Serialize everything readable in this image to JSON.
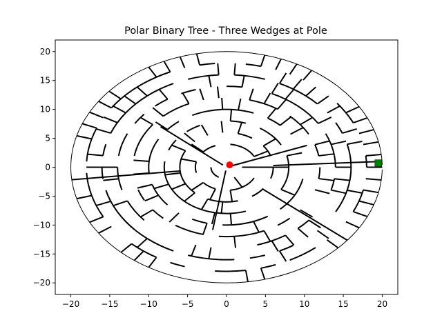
{
  "figure": {
    "title": "Polar Binary Tree - Three Wedges at Pole",
    "background": "#ffffff"
  },
  "chart_data": {
    "type": "maze",
    "title": "Polar Binary Tree - Three Wedges at Pole",
    "xlim": [
      -22,
      22
    ],
    "ylim": [
      -22,
      22
    ],
    "xticks": [
      -20,
      -15,
      -10,
      -5,
      0,
      5,
      10,
      15,
      20
    ],
    "yticks": [
      -20,
      -15,
      -10,
      -5,
      0,
      5,
      10,
      15,
      20
    ],
    "xtick_labels": [
      "−20",
      "−15",
      "−10",
      "−5",
      "0",
      "5",
      "10",
      "15",
      "20"
    ],
    "ytick_labels": [
      "−20",
      "−15",
      "−10",
      "−5",
      "0",
      "5",
      "10",
      "15",
      "20"
    ],
    "maze": {
      "outer_radius": 20,
      "ring_count": 10,
      "wall_color": "#000000",
      "start_marker": {
        "label": "start",
        "x": 0.4,
        "y": 0.4,
        "color": "#ff0000"
      },
      "goal_marker": {
        "label": "goal",
        "x": 19.5,
        "y": 0.7,
        "color": "#008000"
      }
    }
  }
}
